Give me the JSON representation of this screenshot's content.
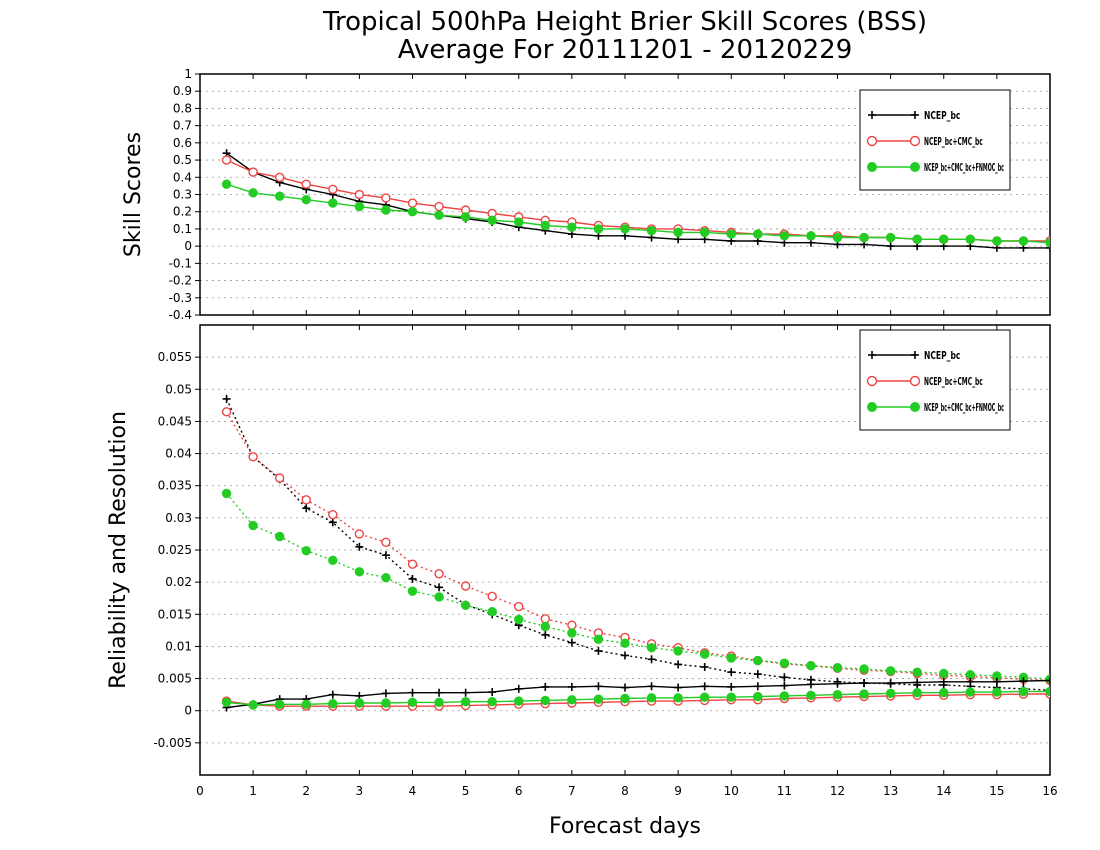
{
  "chart_data": [
    {
      "type": "line",
      "title": "Tropical 500hPa Height Brier Skill Scores (BSS)",
      "subtitle": "Average For 20111201 - 20120229",
      "xlabel": "Forecast days",
      "ylabel": "Skill Scores",
      "xlim": [
        0,
        16
      ],
      "ylim": [
        -0.4,
        1
      ],
      "x_ticks": [
        "0",
        "1",
        "2",
        "3",
        "4",
        "5",
        "6",
        "7",
        "8",
        "9",
        "10",
        "11",
        "12",
        "13",
        "14",
        "15",
        "16"
      ],
      "y_ticks": [
        "-0.4",
        "-0.3",
        "-0.2",
        "-0.1",
        "0",
        "0.1",
        "0.2",
        "0.3",
        "0.4",
        "0.5",
        "0.6",
        "0.7",
        "0.8",
        "0.9",
        "1"
      ],
      "grid": true,
      "legend_position": "top-right",
      "x": [
        0.5,
        1,
        1.5,
        2,
        2.5,
        3,
        3.5,
        4,
        4.5,
        5,
        5.5,
        6,
        6.5,
        7,
        7.5,
        8,
        8.5,
        9,
        9.5,
        10,
        10.5,
        11,
        11.5,
        12,
        12.5,
        13,
        13.5,
        14,
        14.5,
        15,
        15.5,
        16
      ],
      "series": [
        {
          "legend": "NCEP_bc",
          "color": "#000000",
          "marker": "plus",
          "values": [
            0.54,
            0.43,
            0.37,
            0.33,
            0.3,
            0.26,
            0.24,
            0.2,
            0.18,
            0.16,
            0.14,
            0.11,
            0.09,
            0.07,
            0.06,
            0.06,
            0.05,
            0.04,
            0.04,
            0.03,
            0.03,
            0.02,
            0.02,
            0.01,
            0.01,
            0.0,
            0.0,
            0.0,
            0.0,
            -0.01,
            -0.01,
            -0.01
          ]
        },
        {
          "legend": "NCEP_bc+CMC_bc",
          "color": "#ee4444",
          "marker": "circle-open",
          "values": [
            0.5,
            0.43,
            0.4,
            0.36,
            0.33,
            0.3,
            0.28,
            0.25,
            0.23,
            0.21,
            0.19,
            0.17,
            0.15,
            0.14,
            0.12,
            0.11,
            0.1,
            0.1,
            0.09,
            0.08,
            0.07,
            0.07,
            0.06,
            0.06,
            0.05,
            0.05,
            0.04,
            0.04,
            0.04,
            0.03,
            0.03,
            0.03
          ]
        },
        {
          "legend": "NCEP_bc+CMC_bc+FNMOC_bc",
          "color": "#22cc22",
          "marker": "circle-filled",
          "values": [
            0.36,
            0.31,
            0.29,
            0.27,
            0.25,
            0.23,
            0.21,
            0.2,
            0.18,
            0.17,
            0.15,
            0.14,
            0.12,
            0.11,
            0.1,
            0.1,
            0.09,
            0.08,
            0.08,
            0.07,
            0.07,
            0.06,
            0.06,
            0.05,
            0.05,
            0.05,
            0.04,
            0.04,
            0.04,
            0.03,
            0.03,
            0.02
          ]
        }
      ]
    },
    {
      "type": "line",
      "xlabel": "Forecast days",
      "ylabel": "Reliability and Resolution",
      "xlim": [
        0,
        16
      ],
      "ylim": [
        -0.01,
        0.06
      ],
      "x_ticks": [
        "0",
        "1",
        "2",
        "3",
        "4",
        "5",
        "6",
        "7",
        "8",
        "9",
        "10",
        "11",
        "12",
        "13",
        "14",
        "15",
        "16"
      ],
      "y_ticks": [
        "-0.005",
        "0",
        "0.005",
        "0.01",
        "0.015",
        "0.02",
        "0.025",
        "0.03",
        "0.035",
        "0.04",
        "0.045",
        "0.05",
        "0.055"
      ],
      "grid": true,
      "legend_position": "top-right",
      "x": [
        0.5,
        1,
        1.5,
        2,
        2.5,
        3,
        3.5,
        4,
        4.5,
        5,
        5.5,
        6,
        6.5,
        7,
        7.5,
        8,
        8.5,
        9,
        9.5,
        10,
        10.5,
        11,
        11.5,
        12,
        12.5,
        13,
        13.5,
        14,
        14.5,
        15,
        15.5,
        16
      ],
      "series": [
        {
          "legend": "NCEP_bc",
          "color": "#000000",
          "marker": "plus",
          "line": "dotted",
          "values": [
            0.0485,
            0.0395,
            0.036,
            0.0315,
            0.0293,
            0.0255,
            0.0242,
            0.0205,
            0.0192,
            0.0165,
            0.015,
            0.0133,
            0.0118,
            0.0106,
            0.0093,
            0.0086,
            0.008,
            0.0072,
            0.0068,
            0.006,
            0.0057,
            0.0052,
            0.0048,
            0.0045,
            0.0043,
            0.0042,
            0.004,
            0.004,
            0.0038,
            0.0036,
            0.0034,
            0.0032
          ]
        },
        {
          "legend": "NCEP_bc+CMC_bc",
          "color": "#ee4444",
          "marker": "circle-open",
          "line": "dotted",
          "values": [
            0.0465,
            0.0395,
            0.0362,
            0.0328,
            0.0305,
            0.0275,
            0.0262,
            0.0228,
            0.0213,
            0.0194,
            0.0178,
            0.0162,
            0.0143,
            0.0133,
            0.0121,
            0.0114,
            0.0104,
            0.0098,
            0.009,
            0.0085,
            0.0078,
            0.0073,
            0.007,
            0.0066,
            0.0063,
            0.0061,
            0.0058,
            0.0055,
            0.0053,
            0.0051,
            0.0049,
            0.0047
          ]
        },
        {
          "legend": "NCEP_bc+CMC_bc+FNMOC_bc",
          "color": "#22cc22",
          "marker": "circle-filled",
          "line": "dotted",
          "values": [
            0.0338,
            0.0288,
            0.0271,
            0.0249,
            0.0234,
            0.0216,
            0.0207,
            0.0186,
            0.0177,
            0.0164,
            0.0154,
            0.0142,
            0.0131,
            0.0121,
            0.0111,
            0.0105,
            0.0098,
            0.0093,
            0.0088,
            0.0082,
            0.0078,
            0.0074,
            0.007,
            0.0067,
            0.0065,
            0.0062,
            0.006,
            0.0058,
            0.0056,
            0.0054,
            0.0052,
            0.0049
          ]
        },
        {
          "legend": "NCEP_bc",
          "color": "#000000",
          "marker": "plus",
          "line": "solid",
          "values": [
            0.0005,
            0.001,
            0.0018,
            0.0018,
            0.0025,
            0.0023,
            0.0027,
            0.0028,
            0.0028,
            0.0028,
            0.0029,
            0.0034,
            0.0037,
            0.0037,
            0.0038,
            0.0036,
            0.0038,
            0.0036,
            0.0038,
            0.0037,
            0.0038,
            0.0039,
            0.0041,
            0.0042,
            0.0043,
            0.0043,
            0.0044,
            0.0045,
            0.0045,
            0.0045,
            0.0046,
            0.0047
          ]
        },
        {
          "legend": "NCEP_bc+CMC_bc",
          "color": "#ee4444",
          "marker": "circle-open",
          "line": "solid",
          "values": [
            0.0015,
            0.0009,
            0.0007,
            0.0007,
            0.0007,
            0.0007,
            0.0007,
            0.0007,
            0.0007,
            0.0008,
            0.0009,
            0.001,
            0.0011,
            0.0012,
            0.0013,
            0.0014,
            0.0015,
            0.0015,
            0.0016,
            0.0017,
            0.0017,
            0.0019,
            0.002,
            0.0021,
            0.0022,
            0.0023,
            0.0024,
            0.0024,
            0.0025,
            0.0025,
            0.0026,
            0.0026
          ]
        },
        {
          "legend": "NCEP_bc+CMC_bc+FNMOC_bc",
          "color": "#22cc22",
          "marker": "circle-filled",
          "line": "solid",
          "values": [
            0.0013,
            0.0009,
            0.001,
            0.001,
            0.0011,
            0.0012,
            0.0012,
            0.0013,
            0.0013,
            0.0014,
            0.0014,
            0.0015,
            0.0016,
            0.0017,
            0.0018,
            0.0019,
            0.002,
            0.002,
            0.0021,
            0.0021,
            0.0022,
            0.0023,
            0.0024,
            0.0025,
            0.0026,
            0.0027,
            0.0028,
            0.0028,
            0.0029,
            0.0029,
            0.003,
            0.003
          ]
        }
      ]
    }
  ]
}
